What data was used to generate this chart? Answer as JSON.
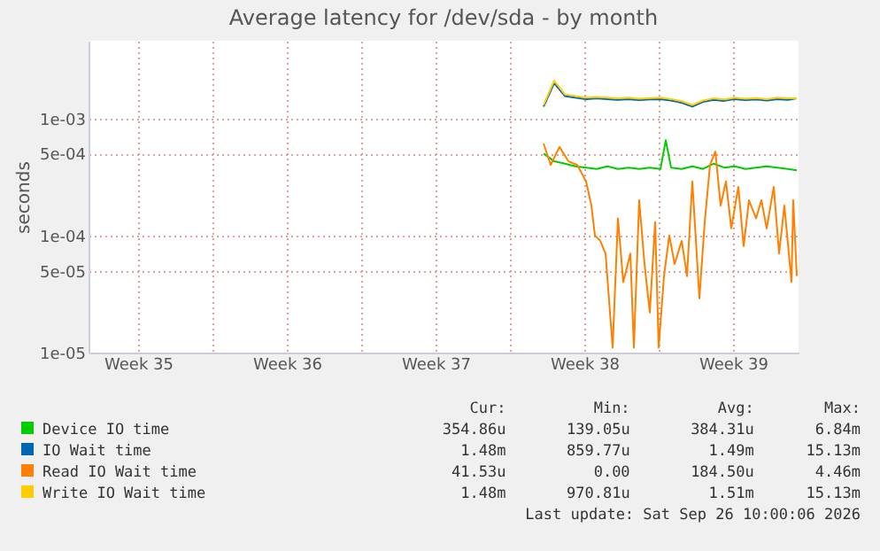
{
  "chart_data": {
    "type": "line",
    "title": "Average latency for /dev/sda - by month",
    "ylabel": "seconds",
    "log": "y",
    "grid": true,
    "legend": "bottom",
    "xlim": [
      "2026-08-25T04:00",
      "2026-09-27T14:00"
    ],
    "xticks": [
      {
        "value": "2026-08-27T12:00",
        "label": "Week 35"
      },
      {
        "value": "2026-08-31T00:00",
        "label": null
      },
      {
        "value": "2026-09-03T12:00",
        "label": "Week 36"
      },
      {
        "value": "2026-09-07T00:00",
        "label": null
      },
      {
        "value": "2026-09-10T12:00",
        "label": "Week 37"
      },
      {
        "value": "2026-09-14T00:00",
        "label": null
      },
      {
        "value": "2026-09-17T12:00",
        "label": "Week 38"
      },
      {
        "value": "2026-09-21T00:00",
        "label": null
      },
      {
        "value": "2026-09-24T12:00",
        "label": "Week 39"
      }
    ],
    "ylim": [
      1e-05,
      0.0046
    ],
    "yticks": [
      {
        "value": 1e-05,
        "label": "1e-05"
      },
      {
        "value": 5e-05,
        "label": "5e-05"
      },
      {
        "value": 0.0001,
        "label": "1e-04"
      },
      {
        "value": 0.0005,
        "label": "5e-04"
      },
      {
        "value": 0.001,
        "label": "1e-03"
      }
    ],
    "x": [
      "2026-09-15T14:00",
      "2026-09-16T02:00",
      "2026-09-16T14:00",
      "2026-09-17T02:00",
      "2026-09-17T14:00",
      "2026-09-18T02:00",
      "2026-09-18T14:00",
      "2026-09-19T02:00",
      "2026-09-19T14:00",
      "2026-09-20T02:00",
      "2026-09-20T14:00",
      "2026-09-21T02:00",
      "2026-09-21T08:00",
      "2026-09-21T14:00",
      "2026-09-22T02:00",
      "2026-09-22T14:00",
      "2026-09-23T02:00",
      "2026-09-23T14:00",
      "2026-09-24T02:00",
      "2026-09-24T14:00",
      "2026-09-25T02:00",
      "2026-09-25T14:00",
      "2026-09-26T02:00",
      "2026-09-26T14:00",
      "2026-09-27T02:00",
      "2026-09-27T12:00"
    ],
    "series": [
      {
        "name": "Device IO time",
        "color": "#00cc00",
        "values": [
          0.0005,
          0.00043,
          0.00041,
          0.00039,
          0.00038,
          0.00037,
          0.00039,
          0.00037,
          0.00038,
          0.00037,
          0.00038,
          0.00037,
          0.00065,
          0.00038,
          0.00037,
          0.00039,
          0.00037,
          0.00041,
          0.00038,
          0.00039,
          0.00037,
          0.00038,
          0.00039,
          0.00038,
          0.00037,
          0.00036
        ]
      },
      {
        "name": "IO Wait time",
        "color": "#0066b3",
        "values": [
          0.00126,
          0.002,
          0.00155,
          0.0015,
          0.00146,
          0.00148,
          0.00146,
          0.00144,
          0.00146,
          0.00143,
          0.00145,
          0.00146,
          0.00144,
          0.00142,
          0.00136,
          0.00126,
          0.00138,
          0.00144,
          0.00141,
          0.00146,
          0.00143,
          0.00145,
          0.00142,
          0.00146,
          0.00144,
          0.00148
        ]
      },
      {
        "name": "Read IO Wait time",
        "color": "#ff8000",
        "x": [
          "2026-09-15T14:00",
          "2026-09-15T22:00",
          "2026-09-16T08:00",
          "2026-09-16T18:00",
          "2026-09-17T04:00",
          "2026-09-17T14:00",
          "2026-09-17T20:00",
          "2026-09-18T00:00",
          "2026-09-18T06:00",
          "2026-09-18T12:00",
          "2026-09-18T20:00",
          "2026-09-19T02:00",
          "2026-09-19T08:00",
          "2026-09-19T16:00",
          "2026-09-19T20:00",
          "2026-09-20T02:00",
          "2026-09-20T08:00",
          "2026-09-20T14:00",
          "2026-09-20T20:00",
          "2026-09-21T00:00",
          "2026-09-21T06:00",
          "2026-09-21T12:00",
          "2026-09-21T18:00",
          "2026-09-22T02:00",
          "2026-09-22T08:00",
          "2026-09-22T14:00",
          "2026-09-22T22:00",
          "2026-09-23T04:00",
          "2026-09-23T10:00",
          "2026-09-23T16:00",
          "2026-09-23T22:00",
          "2026-09-24T04:00",
          "2026-09-24T10:00",
          "2026-09-24T18:00",
          "2026-09-25T00:00",
          "2026-09-25T06:00",
          "2026-09-25T14:00",
          "2026-09-25T20:00",
          "2026-09-26T02:00",
          "2026-09-26T10:00",
          "2026-09-26T16:00",
          "2026-09-26T22:00",
          "2026-09-27T06:00",
          "2026-09-27T08:00",
          "2026-09-27T12:00"
        ],
        "values": [
          0.00061,
          0.0004,
          0.00057,
          0.00043,
          0.0004,
          0.00029,
          0.00018,
          0.0001,
          9e-05,
          7e-05,
          1.1e-05,
          0.00014,
          4e-05,
          7e-05,
          1.1e-05,
          0.0002,
          5.7e-05,
          2.2e-05,
          0.00013,
          1.1e-05,
          4.5e-05,
          0.0001,
          5.7e-05,
          9e-05,
          4.5e-05,
          0.00029,
          2.9e-05,
          0.00013,
          0.0004,
          0.00052,
          0.00018,
          0.00029,
          0.000115,
          0.00026,
          8.1e-05,
          0.0002,
          0.00014,
          0.0002,
          0.000115,
          0.00026,
          7e-05,
          0.00018,
          4e-05,
          0.0002,
          4.5e-05
        ]
      },
      {
        "name": "Write IO Wait time",
        "color": "#ffcc00",
        "values": [
          0.0013,
          0.0021,
          0.0016,
          0.00155,
          0.0015,
          0.00152,
          0.0015,
          0.00148,
          0.0015,
          0.00147,
          0.00149,
          0.0015,
          0.00148,
          0.00146,
          0.0014,
          0.0013,
          0.00142,
          0.00148,
          0.00145,
          0.0015,
          0.00147,
          0.00149,
          0.00146,
          0.0015,
          0.00148,
          0.00148
        ]
      }
    ],
    "annotations": [
      "Cur:",
      "Min:",
      "Avg:",
      "Max:",
      "354.86u",
      "139.05u",
      "384.31u",
      "6.84m",
      "1.48m",
      "859.77u",
      "1.49m",
      "15.13m",
      "41.53u",
      "0.00",
      "184.50u",
      "4.46m",
      "1.48m",
      "970.81u",
      "1.51m",
      "15.13m",
      "Last update: Sat Sep 26 10:00:06 2026"
    ]
  }
}
